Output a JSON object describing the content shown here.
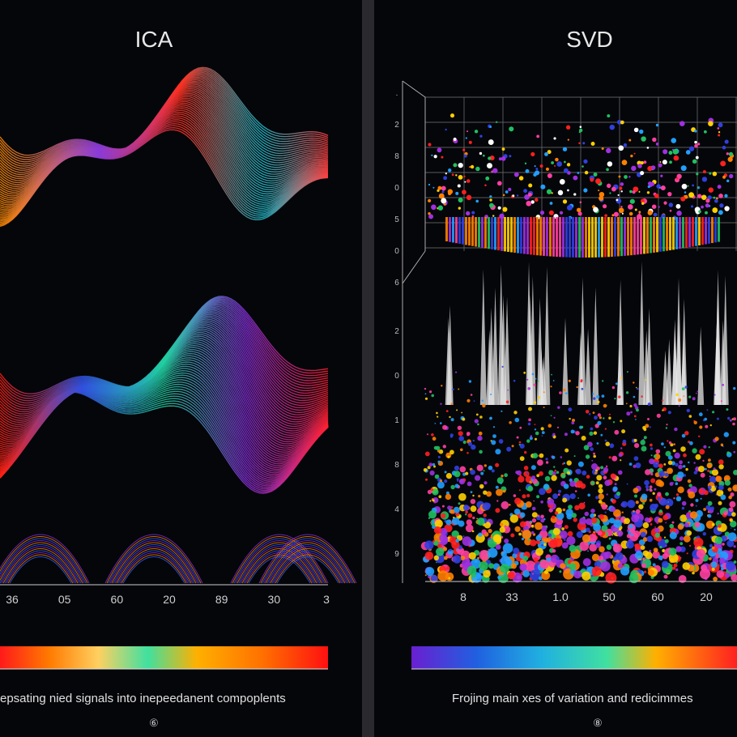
{
  "panels": [
    {
      "title": "ICA",
      "x_labels": [
        "36",
        "05",
        "60",
        "20",
        "89",
        "30",
        "3"
      ],
      "caption": "epsating nied signals into inepeedanent compoplents",
      "footnote": "⑥"
    },
    {
      "title": "SVD",
      "y_labels_top": [
        ".",
        "2",
        "8",
        "0",
        "5",
        "0",
        "6"
      ],
      "y_labels_bottom": [
        "2",
        "0",
        "1",
        "8",
        "4",
        "9"
      ],
      "x_labels": [
        "8",
        "33",
        "1.0",
        "50",
        "60",
        "20"
      ],
      "caption": "Frojing main xes of variation and redicimmes",
      "footnote": "⑧"
    }
  ]
}
